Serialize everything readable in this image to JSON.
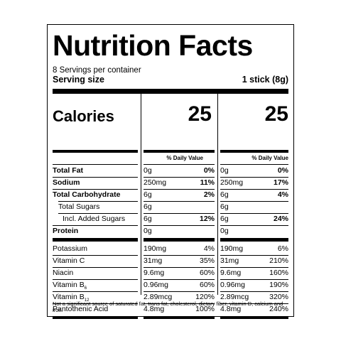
{
  "title": "Nutrition Facts",
  "servings_per_container": "8 Servings per container",
  "serving_size_label": "Serving size",
  "serving_size_value": "1 stick (8g)",
  "calories_label": "Calories",
  "calories": [
    "25",
    "25"
  ],
  "dv_header": "% Daily Value",
  "nutrients": [
    {
      "name": "Total Fat",
      "bold": true,
      "indent": 0,
      "col1_amt": "0g",
      "col1_dv": "0%",
      "col2_amt": "0g",
      "col2_dv": "0%"
    },
    {
      "name": "Sodium",
      "bold": true,
      "indent": 0,
      "col1_amt": "250mg",
      "col1_dv": "11%",
      "col2_amt": "250mg",
      "col2_dv": "17%"
    },
    {
      "name": "Total Carbohydrate",
      "bold": true,
      "indent": 0,
      "col1_amt": "6g",
      "col1_dv": "2%",
      "col2_amt": "6g",
      "col2_dv": "4%"
    },
    {
      "name": "Total Sugars",
      "bold": false,
      "indent": 1,
      "col1_amt": "6g",
      "col1_dv": "",
      "col2_amt": "6g",
      "col2_dv": ""
    },
    {
      "name": "Incl. Added Sugars",
      "bold": false,
      "indent": 2,
      "col1_amt": "6g",
      "col1_dv": "12%",
      "col2_amt": "6g",
      "col2_dv": "24%"
    },
    {
      "name": "Protein",
      "bold": true,
      "indent": 0,
      "col1_amt": "0g",
      "col1_dv": "",
      "col2_amt": "0g",
      "col2_dv": ""
    }
  ],
  "vitamins": [
    {
      "name": "Potassium",
      "sub": "",
      "col1_amt": "190mg",
      "col1_dv": "4%",
      "col2_amt": "190mg",
      "col2_dv": "6%"
    },
    {
      "name": "Vitamin C",
      "sub": "",
      "col1_amt": "31mg",
      "col1_dv": "35%",
      "col2_amt": "31mg",
      "col2_dv": "210%"
    },
    {
      "name": "Niacin",
      "sub": "",
      "col1_amt": "9.6mg",
      "col1_dv": "60%",
      "col2_amt": "9.6mg",
      "col2_dv": "160%"
    },
    {
      "name": "Vitamin B",
      "sub": "6",
      "col1_amt": "0.96mg",
      "col1_dv": "60%",
      "col2_amt": "0.96mg",
      "col2_dv": "190%"
    },
    {
      "name": "Vitamin B",
      "sub": "12",
      "col1_amt": "2.89mcg",
      "col1_dv": "120%",
      "col2_amt": "2.89mcg",
      "col2_dv": "320%"
    },
    {
      "name": "Pantothenic Acid",
      "sub": "",
      "col1_amt": "4.8mg",
      "col1_dv": "100%",
      "col2_amt": "4.8mg",
      "col2_dv": "240%"
    }
  ],
  "footnote": "Not a significant source of saturated fat, trans fat, cholesterol, dietary fiber, vitamin D, calcium and iron."
}
